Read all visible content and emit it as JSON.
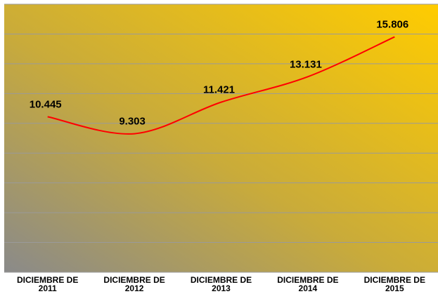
{
  "chart_data": {
    "type": "line",
    "categories": [
      "DICIEMBRE DE 2011",
      "DICIEMBRE DE 2012",
      "DICIEMBRE DE 2013",
      "DICIEMBRE DE 2014",
      "DICIEMBRE DE 2015"
    ],
    "series": [
      {
        "color": "#ff0000",
        "values": [
          10445,
          9303,
          11421,
          13131,
          15806
        ],
        "value_labels": [
          "10.445",
          "9.303",
          "11.421",
          "13.131",
          "15.806"
        ]
      }
    ],
    "ylim": [
      0,
      18000
    ],
    "yticks": [
      0,
      2000,
      4000,
      6000,
      8000,
      10000,
      12000,
      14000,
      16000,
      18000
    ],
    "grid": true
  }
}
